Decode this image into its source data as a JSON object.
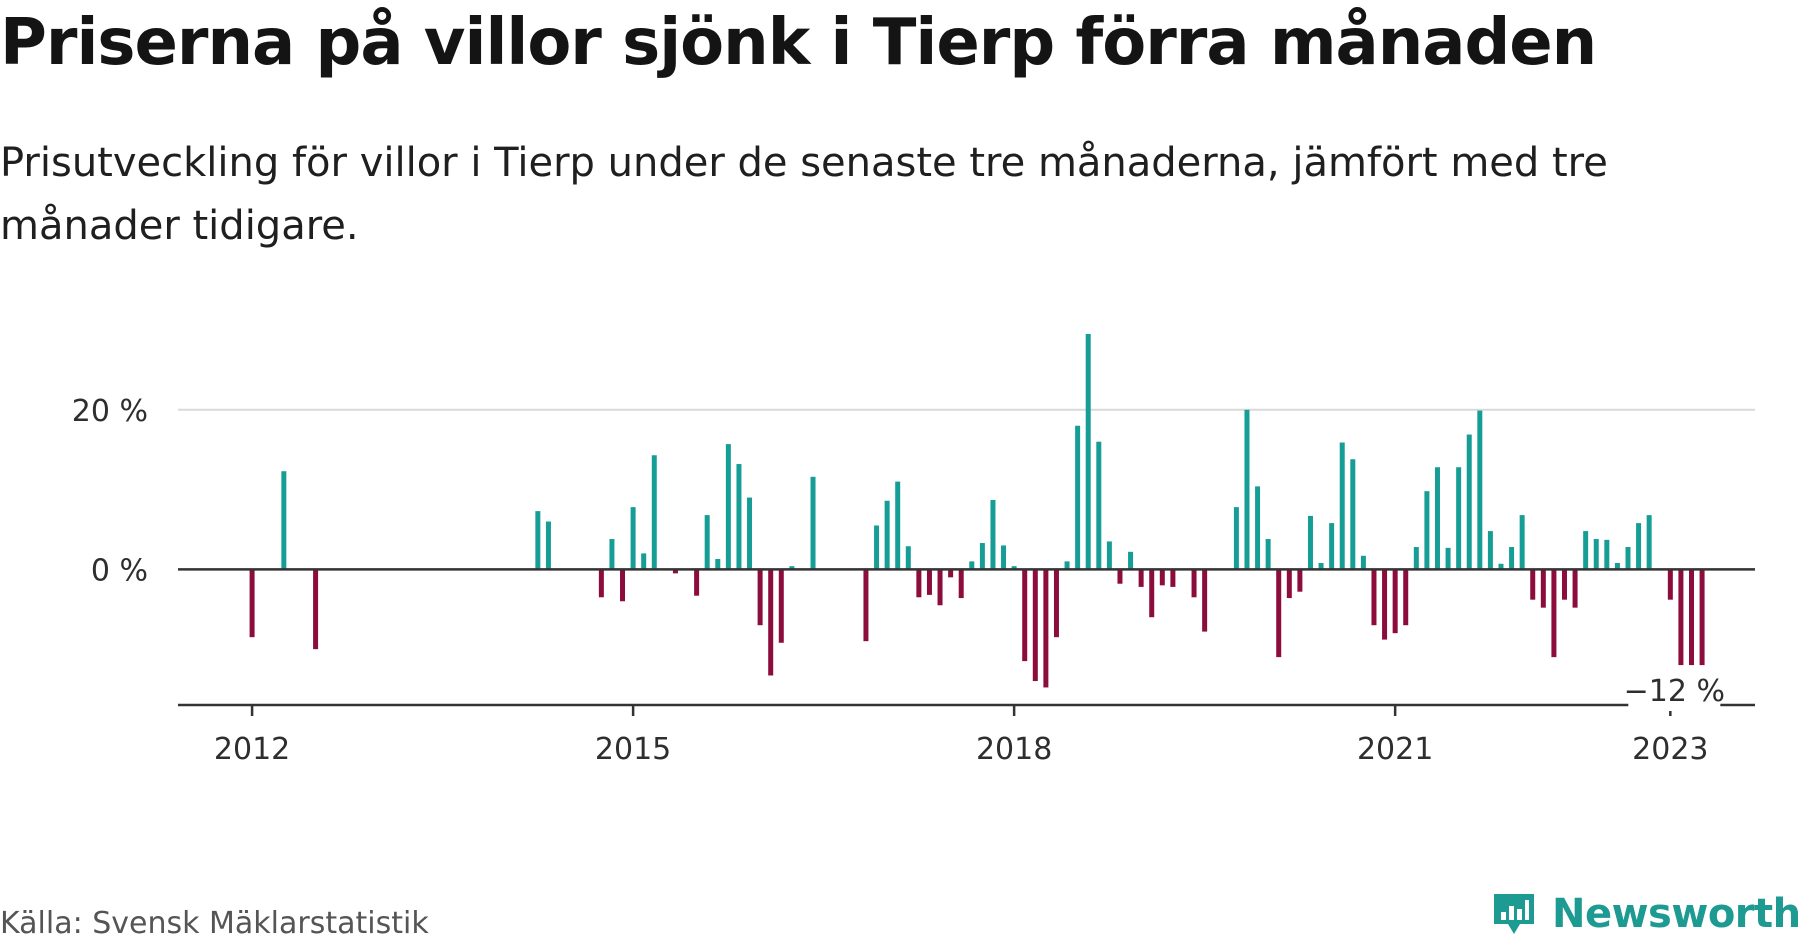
{
  "title": "Priserna på villor sjönk i Tierp förra månaden",
  "subtitle": "Prisutveckling för villor i Tierp under de senaste tre månaderna, jämfört med tre månader tidigare.",
  "source": "Källa: Svensk Mäklarstatistik",
  "brand": {
    "name": "Newsworthy",
    "icon": "newsworthy-logo-icon"
  },
  "colors": {
    "positive": "#169e96",
    "negative": "#8c0c3c",
    "axis": "#333333",
    "grid": "#d9d9d9",
    "brand": "#1d9a91"
  },
  "chart_data": {
    "type": "bar",
    "title": "Priserna på villor sjönk i Tierp förra månaden",
    "subtitle": "Prisutveckling för villor i Tierp under de senaste tre månaderna, jämfört med tre månader tidigare.",
    "xlabel": "",
    "ylabel": "",
    "unit": "%",
    "grid": true,
    "ylim": [
      -17,
      30
    ],
    "xlim": [
      "2011-06",
      "2023-11"
    ],
    "y_ticks": [
      {
        "value": 0,
        "label": "0 %"
      },
      {
        "value": 20,
        "label": "20 %"
      }
    ],
    "x_ticks": [
      {
        "date": "2012-01",
        "label": "2012"
      },
      {
        "date": "2015-01",
        "label": "2015"
      },
      {
        "date": "2018-01",
        "label": "2018"
      },
      {
        "date": "2021-01",
        "label": "2021"
      },
      {
        "date": "2023-03",
        "label": "2023"
      }
    ],
    "annotation": {
      "date": "2023-03",
      "value": -12,
      "label": "−12 %"
    },
    "series": [
      {
        "name": "",
        "points": [
          {
            "date": "2012-01",
            "value": -8.5
          },
          {
            "date": "2012-04",
            "value": 12.3
          },
          {
            "date": "2012-07",
            "value": -10.0
          },
          {
            "date": "2014-04",
            "value": 7.3
          },
          {
            "date": "2014-05",
            "value": 6.0
          },
          {
            "date": "2014-10",
            "value": -3.5
          },
          {
            "date": "2014-11",
            "value": 3.8
          },
          {
            "date": "2014-12",
            "value": -4.0
          },
          {
            "date": "2015-01",
            "value": 7.8
          },
          {
            "date": "2015-02",
            "value": 2.0
          },
          {
            "date": "2015-03",
            "value": 14.3
          },
          {
            "date": "2015-05",
            "value": -0.5
          },
          {
            "date": "2015-07",
            "value": -3.3
          },
          {
            "date": "2015-08",
            "value": 6.8
          },
          {
            "date": "2015-09",
            "value": 1.3
          },
          {
            "date": "2015-10",
            "value": 15.7
          },
          {
            "date": "2015-11",
            "value": 13.2
          },
          {
            "date": "2015-12",
            "value": 9.0
          },
          {
            "date": "2016-01",
            "value": -7.0
          },
          {
            "date": "2016-02",
            "value": -13.3
          },
          {
            "date": "2016-03",
            "value": -9.2
          },
          {
            "date": "2016-04",
            "value": 0.4
          },
          {
            "date": "2016-06",
            "value": 11.6
          },
          {
            "date": "2016-11",
            "value": -9.0
          },
          {
            "date": "2016-12",
            "value": 5.5
          },
          {
            "date": "2017-01",
            "value": 8.6
          },
          {
            "date": "2017-02",
            "value": 11.0
          },
          {
            "date": "2017-03",
            "value": 2.9
          },
          {
            "date": "2017-04",
            "value": -3.5
          },
          {
            "date": "2017-05",
            "value": -3.2
          },
          {
            "date": "2017-06",
            "value": -4.5
          },
          {
            "date": "2017-07",
            "value": -1.0
          },
          {
            "date": "2017-08",
            "value": -3.6
          },
          {
            "date": "2017-09",
            "value": 1.0
          },
          {
            "date": "2017-10",
            "value": 3.3
          },
          {
            "date": "2017-11",
            "value": 8.7
          },
          {
            "date": "2017-12",
            "value": 3.0
          },
          {
            "date": "2018-01",
            "value": 0.4
          },
          {
            "date": "2018-02",
            "value": -11.5
          },
          {
            "date": "2018-03",
            "value": -14.0
          },
          {
            "date": "2018-04",
            "value": -14.8
          },
          {
            "date": "2018-05",
            "value": -8.5
          },
          {
            "date": "2018-06",
            "value": 1.0
          },
          {
            "date": "2018-07",
            "value": 18.0
          },
          {
            "date": "2018-08",
            "value": 29.5
          },
          {
            "date": "2018-09",
            "value": 16.0
          },
          {
            "date": "2018-10",
            "value": 3.5
          },
          {
            "date": "2018-11",
            "value": -1.8
          },
          {
            "date": "2018-12",
            "value": 2.2
          },
          {
            "date": "2019-01",
            "value": -2.2
          },
          {
            "date": "2019-02",
            "value": -6.0
          },
          {
            "date": "2019-03",
            "value": -2.0
          },
          {
            "date": "2019-04",
            "value": -2.2
          },
          {
            "date": "2019-06",
            "value": -3.5
          },
          {
            "date": "2019-07",
            "value": -7.8
          },
          {
            "date": "2019-10",
            "value": 7.8
          },
          {
            "date": "2019-11",
            "value": 20.0
          },
          {
            "date": "2019-12",
            "value": 10.4
          },
          {
            "date": "2020-01",
            "value": 3.8
          },
          {
            "date": "2020-02",
            "value": -11.0
          },
          {
            "date": "2020-03",
            "value": -3.6
          },
          {
            "date": "2020-04",
            "value": -2.8
          },
          {
            "date": "2020-05",
            "value": 6.7
          },
          {
            "date": "2020-06",
            "value": 0.8
          },
          {
            "date": "2020-07",
            "value": 5.8
          },
          {
            "date": "2020-08",
            "value": 15.9
          },
          {
            "date": "2020-09",
            "value": 13.8
          },
          {
            "date": "2020-10",
            "value": 1.7
          },
          {
            "date": "2020-11",
            "value": -7.0
          },
          {
            "date": "2020-12",
            "value": -8.8
          },
          {
            "date": "2021-01",
            "value": -8.0
          },
          {
            "date": "2021-02",
            "value": -7.0
          },
          {
            "date": "2021-03",
            "value": 2.8
          },
          {
            "date": "2021-04",
            "value": 9.8
          },
          {
            "date": "2021-05",
            "value": 12.8
          },
          {
            "date": "2021-06",
            "value": 2.7
          },
          {
            "date": "2021-07",
            "value": 12.8
          },
          {
            "date": "2021-08",
            "value": 16.9
          },
          {
            "date": "2021-09",
            "value": 19.9
          },
          {
            "date": "2021-10",
            "value": 4.8
          },
          {
            "date": "2021-11",
            "value": 0.7
          },
          {
            "date": "2021-12",
            "value": 2.8
          },
          {
            "date": "2022-01",
            "value": 6.8
          },
          {
            "date": "2022-02",
            "value": -3.8
          },
          {
            "date": "2022-03",
            "value": -4.8
          },
          {
            "date": "2022-04",
            "value": -11.0
          },
          {
            "date": "2022-05",
            "value": -3.8
          },
          {
            "date": "2022-06",
            "value": -4.8
          },
          {
            "date": "2022-07",
            "value": 4.8
          },
          {
            "date": "2022-08",
            "value": 3.8
          },
          {
            "date": "2022-09",
            "value": 3.7
          },
          {
            "date": "2022-10",
            "value": 0.8
          },
          {
            "date": "2022-11",
            "value": 2.8
          },
          {
            "date": "2022-12",
            "value": 5.8
          },
          {
            "date": "2023-01",
            "value": 6.8
          },
          {
            "date": "2023-03",
            "value": -3.8
          },
          {
            "date": "2023-04",
            "value": -12.0
          },
          {
            "date": "2023-05",
            "value": -12.0
          },
          {
            "date": "2023-06",
            "value": -12.0
          }
        ]
      }
    ]
  }
}
